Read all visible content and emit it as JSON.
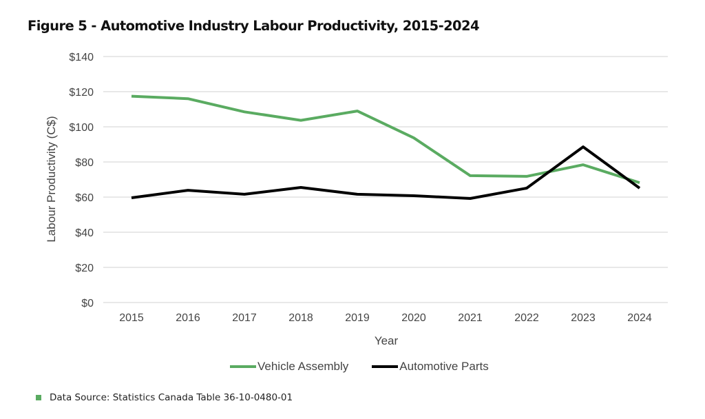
{
  "title": "Figure 5 - Automotive Industry Labour Productivity, 2015-2024",
  "source_note": "Data Source: Statistics Canada Table 36-10-0480-01",
  "colors": {
    "vehicle_assembly": "#5aab61",
    "automotive_parts": "#000000",
    "grid": "#d9d9d9",
    "source_bullet": "#5aab61"
  },
  "chart_data": {
    "type": "line",
    "title": "Figure 5 - Automotive Industry Labour Productivity, 2015-2024",
    "xlabel": "Year",
    "ylabel": "Labour Productivity (C$)",
    "x": [
      "2015",
      "2016",
      "2017",
      "2018",
      "2019",
      "2020",
      "2021",
      "2022",
      "2023",
      "2024"
    ],
    "ylim": [
      0,
      140
    ],
    "yticks": [
      0,
      20,
      40,
      60,
      80,
      100,
      120,
      140
    ],
    "ytick_labels": [
      "$0",
      "$20",
      "$40",
      "$60",
      "$80",
      "$100",
      "$120",
      "$140"
    ],
    "grid": true,
    "legend_position": "bottom",
    "series": [
      {
        "name": "Vehicle Assembly",
        "color": "#5aab61",
        "values": [
          117.4,
          116.0,
          108.5,
          103.7,
          109.0,
          93.7,
          72.2,
          71.8,
          78.4,
          68.2
        ]
      },
      {
        "name": "Automotive Parts",
        "color": "#000000",
        "values": [
          59.6,
          63.9,
          61.6,
          65.5,
          61.6,
          60.8,
          59.2,
          65.1,
          88.6,
          65.1
        ]
      }
    ]
  }
}
